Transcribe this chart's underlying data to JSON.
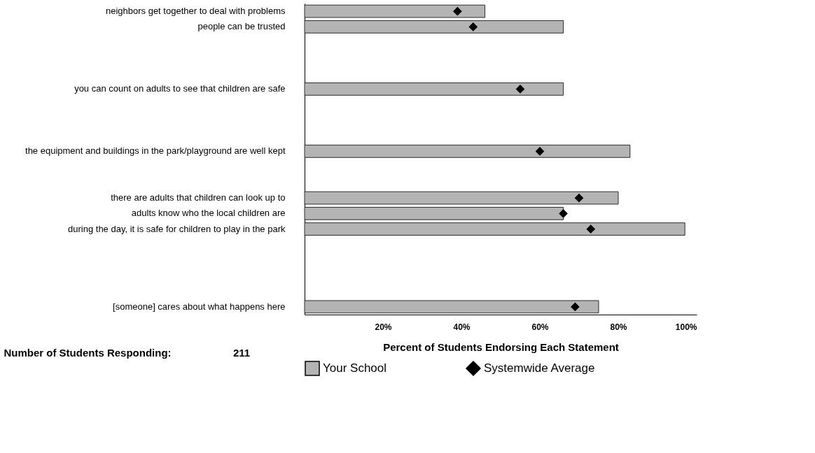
{
  "chart_data": {
    "type": "bar",
    "orientation": "horizontal",
    "xlabel": "Percent of Students Endorsing Each Statement",
    "categories": [
      "neighbors get together to deal with problems",
      "people can be trusted",
      null,
      null,
      null,
      "you can count on adults to see that children are safe",
      null,
      null,
      null,
      "the equipment and buildings in the park/playground are well kept",
      null,
      null,
      "there are adults that children can look up to",
      "adults know who the local children are",
      "during the day, it is safe for children to play in the park",
      null,
      null,
      null,
      null,
      "[someone] cares about what happens here"
    ],
    "series": [
      {
        "name": "Your School",
        "color": "#b4b4b4",
        "values": [
          46,
          66,
          null,
          null,
          null,
          66,
          null,
          null,
          null,
          83,
          null,
          null,
          80,
          66,
          97,
          null,
          null,
          null,
          null,
          75
        ]
      },
      {
        "name": "Systemwide Average",
        "type": "scatter",
        "color": "#000000",
        "marker": "diamond",
        "values": [
          39,
          43,
          null,
          null,
          null,
          55,
          null,
          null,
          null,
          60,
          null,
          null,
          70,
          66,
          73,
          null,
          null,
          null,
          null,
          69
        ]
      }
    ],
    "xlim": [
      0,
      100
    ],
    "xticks": [
      {
        "value": 20,
        "label": "20%"
      },
      {
        "value": 40,
        "label": "40%"
      },
      {
        "value": 60,
        "label": "60%"
      },
      {
        "value": 80,
        "label": "80%"
      },
      {
        "value": 100,
        "label": "100%"
      }
    ],
    "grid": false,
    "legend": "bottom",
    "annotations": [
      "Number of Students Responding:",
      "211"
    ]
  }
}
